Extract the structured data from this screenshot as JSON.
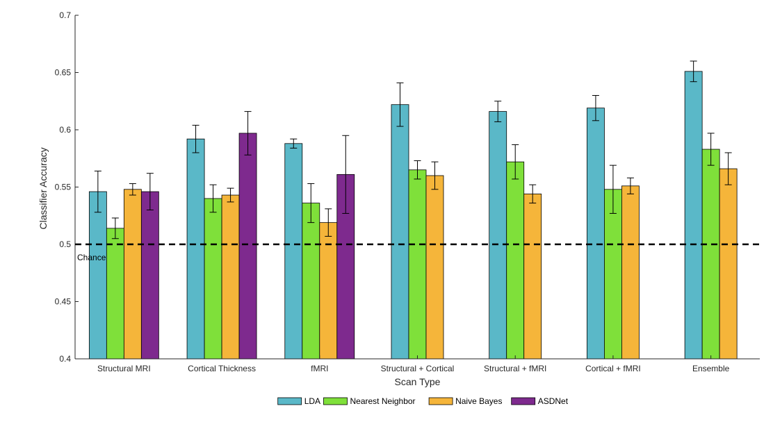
{
  "chart_data": {
    "type": "bar",
    "title": "",
    "xlabel": "Scan Type",
    "ylabel": "Classifier Accuracy",
    "ylim": [
      0.4,
      0.7
    ],
    "yticks": [
      "0.4",
      "0.45",
      "0.5",
      "0.55",
      "0.6",
      "0.65",
      "0.7"
    ],
    "categories": [
      "Structural MRI",
      "Cortical Thickness",
      "fMRI",
      "Structural + Cortical",
      "Structural + fMRI",
      "Cortical + fMRI",
      "Ensemble"
    ],
    "series": [
      {
        "name": "LDA",
        "color": "#5ab8c8",
        "values": [
          0.546,
          0.592,
          0.588,
          0.622,
          0.616,
          0.619,
          0.651
        ],
        "errors": [
          0.018,
          0.012,
          0.004,
          0.019,
          0.009,
          0.011,
          0.009
        ]
      },
      {
        "name": "Nearest Neighbor",
        "color": "#7fe03a",
        "values": [
          0.514,
          0.54,
          0.536,
          0.565,
          0.572,
          0.548,
          0.583
        ],
        "errors": [
          0.009,
          0.012,
          0.017,
          0.008,
          0.015,
          0.021,
          0.014
        ]
      },
      {
        "name": "Naive Bayes",
        "color": "#f5b53a",
        "values": [
          0.548,
          0.543,
          0.519,
          0.56,
          0.544,
          0.551,
          0.566
        ],
        "errors": [
          0.005,
          0.006,
          0.012,
          0.012,
          0.008,
          0.007,
          0.014
        ]
      },
      {
        "name": "ASDNet",
        "color": "#7e2a8e",
        "values": [
          0.546,
          0.597,
          0.561,
          null,
          null,
          null,
          null
        ],
        "errors": [
          0.016,
          0.019,
          0.034,
          null,
          null,
          null,
          null
        ]
      }
    ],
    "reference_line": {
      "value": 0.5,
      "label": "Chance",
      "style": "dashed"
    },
    "legend": {
      "position": "bottom-center",
      "orientation": "horizontal"
    },
    "grid": false
  }
}
